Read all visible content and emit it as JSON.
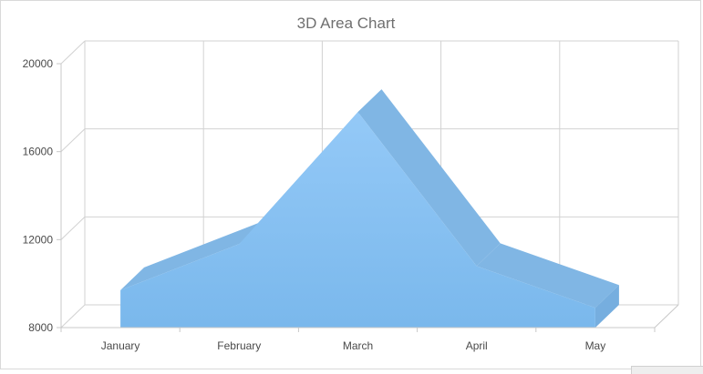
{
  "chart_data": {
    "type": "area",
    "title": "3D Area Chart",
    "categories": [
      "January",
      "February",
      "March",
      "April",
      "May"
    ],
    "series": [
      {
        "values": [
          9700,
          11800,
          17800,
          10800,
          8900
        ]
      }
    ],
    "ylim": [
      8000,
      20000
    ],
    "yticks": [
      8000,
      12000,
      16000,
      20000
    ],
    "xlabel": "",
    "ylabel": "",
    "grid": true,
    "three_d": true,
    "legend": "none",
    "colors": {
      "front_top": "#94c9f7",
      "front_bottom": "#7ab8ec",
      "top_face": "#80b6e4",
      "side_face": "#76aedf",
      "grid": "#d2d2d2",
      "title": "#6f6f6f",
      "tick": "#4a4a4a"
    }
  }
}
